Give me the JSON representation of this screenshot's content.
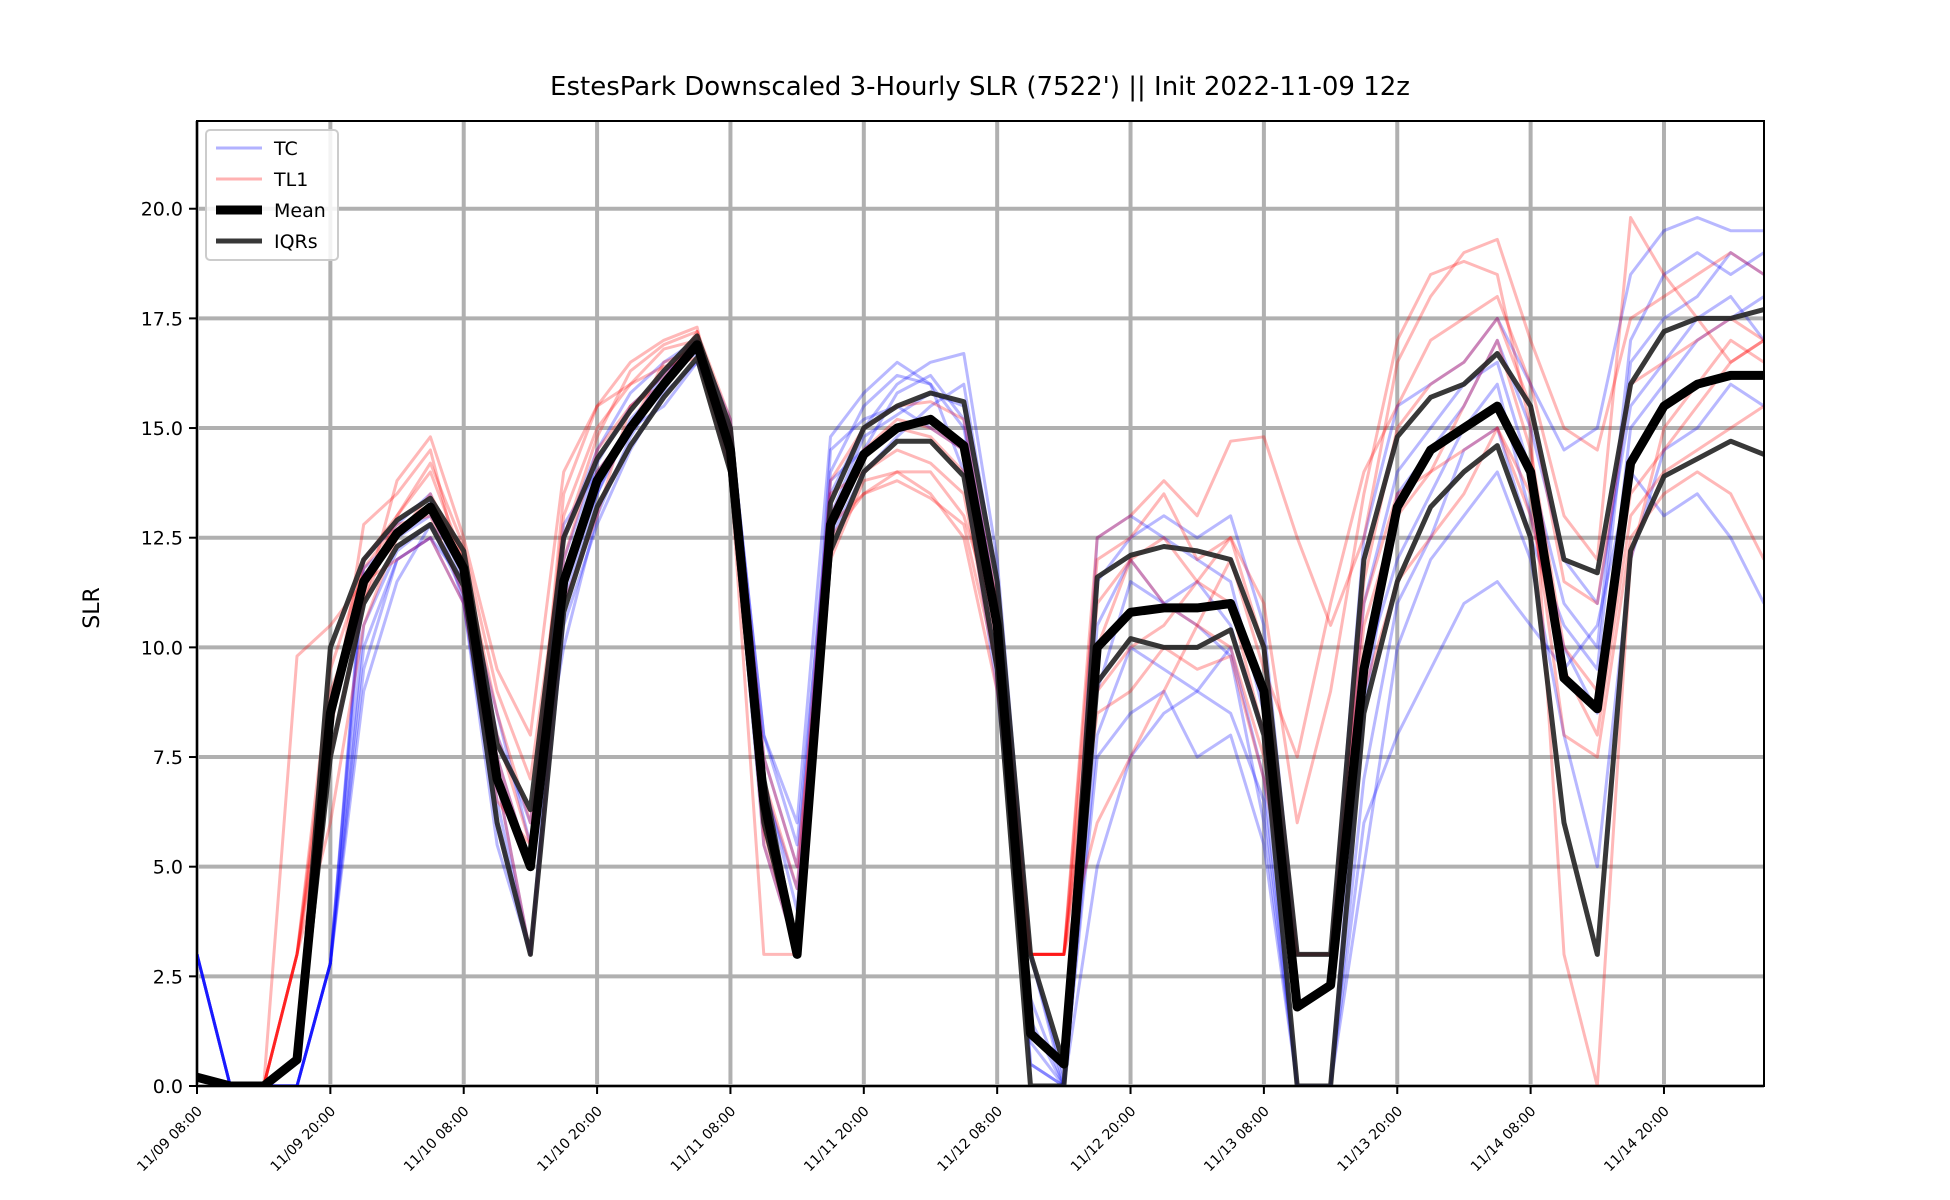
{
  "chart_data": {
    "type": "line",
    "title": "EstesPark Downscaled 3-Hourly SLR (7522') || Init 2022-11-09 12z",
    "ylabel": "SLR",
    "xlabel": "",
    "ylim": [
      0,
      22
    ],
    "yticks": [
      "0.0",
      "2.5",
      "5.0",
      "7.5",
      "10.0",
      "12.5",
      "15.0",
      "17.5",
      "20.0"
    ],
    "ytick_values": [
      0,
      2.5,
      5,
      7.5,
      10,
      12.5,
      15,
      17.5,
      20
    ],
    "xticks": [
      "11/09 08:00",
      "11/09 20:00",
      "11/10 08:00",
      "11/10 20:00",
      "11/11 08:00",
      "11/11 20:00",
      "11/12 08:00",
      "11/12 20:00",
      "11/13 08:00",
      "11/13 20:00",
      "11/14 08:00",
      "11/14 20:00"
    ],
    "x_step_hours": 3,
    "grid": true,
    "legend_position": "top-left",
    "colors": {
      "TC": "#0000ff",
      "TL1": "#ff0000",
      "Mean": "#000000",
      "IQRs": "#222222"
    },
    "legend": [
      {
        "label": "TC",
        "key": "TC"
      },
      {
        "label": "TL1",
        "key": "TL1"
      },
      {
        "label": "Mean",
        "key": "Mean"
      },
      {
        "label": "IQRs",
        "key": "IQRs"
      }
    ],
    "mean": [
      0.2,
      0,
      0,
      0.6,
      8.5,
      11.5,
      12.6,
      13.2,
      11.8,
      7.0,
      5.0,
      11.5,
      13.8,
      15.0,
      16.0,
      16.9,
      14.5,
      6.5,
      3.0,
      12.8,
      14.4,
      15.0,
      15.2,
      14.6,
      10.5,
      1.2,
      0.5,
      10.0,
      10.8,
      10.9,
      10.9,
      11.0,
      9.0,
      1.8,
      2.3,
      9.5,
      13.2,
      14.5,
      15.0,
      15.5,
      14.0,
      9.3,
      8.6,
      14.2,
      15.5,
      16.0,
      16.2,
      16.2
    ],
    "iqr_upper": [
      0.2,
      0,
      0,
      0.6,
      10.0,
      12.0,
      12.9,
      13.4,
      12.2,
      7.8,
      6.3,
      12.5,
      14.3,
      15.4,
      16.3,
      17.1,
      15.0,
      7.0,
      3.0,
      13.3,
      15.0,
      15.5,
      15.8,
      15.6,
      11.5,
      3.0,
      0.5,
      11.6,
      12.1,
      12.3,
      12.2,
      12.0,
      10.0,
      3.0,
      3.0,
      12.0,
      14.8,
      15.7,
      16.0,
      16.7,
      15.5,
      12.0,
      11.7,
      16.0,
      17.2,
      17.5,
      17.5,
      17.7
    ],
    "iqr_lower": [
      0.2,
      0,
      0,
      0.6,
      7.5,
      11.0,
      12.3,
      12.8,
      11.4,
      6.0,
      3.0,
      10.8,
      13.2,
      14.6,
      15.7,
      16.6,
      14.0,
      6.0,
      3.0,
      12.2,
      14.0,
      14.7,
      14.7,
      13.9,
      9.5,
      0,
      0,
      9.2,
      10.2,
      10.0,
      10.0,
      10.4,
      8.0,
      0,
      0,
      8.5,
      11.5,
      13.2,
      14.0,
      14.6,
      12.5,
      6.0,
      3.0,
      12.2,
      13.9,
      14.3,
      14.7,
      14.4
    ],
    "series": [
      {
        "name": "TC",
        "values": [
          3.0,
          0,
          0,
          0,
          2.8,
          11.8,
          12.5,
          13.3,
          11.5,
          8.5,
          5.5,
          10.0,
          13.0,
          14.8,
          16.0,
          16.8,
          15.0,
          8.0,
          5.5,
          13.5,
          15.0,
          16.0,
          16.5,
          16.7,
          12.0,
          3.0,
          0.2,
          12.5,
          13.0,
          12.5,
          12.0,
          11.5,
          8.5,
          3.0,
          3.0,
          12.5,
          15.5,
          16.0,
          16.5,
          17.5,
          16.0,
          14.5,
          15.0,
          18.5,
          19.5,
          19.8,
          19.5,
          19.5
        ]
      },
      {
        "name": "TC",
        "values": [
          3.0,
          0,
          0,
          0,
          2.8,
          10.5,
          12.2,
          12.8,
          11.2,
          6.5,
          3.0,
          11.0,
          13.5,
          15.0,
          16.3,
          16.7,
          14.5,
          6.8,
          4.5,
          13.0,
          14.8,
          15.3,
          15.8,
          15.5,
          10.8,
          1.0,
          0,
          9.0,
          11.5,
          11.0,
          10.5,
          9.8,
          6.0,
          0,
          0,
          5.0,
          10.0,
          12.0,
          13.0,
          14.0,
          12.0,
          8.0,
          5.0,
          12.0,
          14.5,
          15.0,
          16.0,
          15.5
        ]
      },
      {
        "name": "TC",
        "values": [
          3.0,
          0,
          0,
          0,
          2.8,
          9.5,
          12.0,
          12.5,
          11.0,
          5.5,
          3.0,
          12.0,
          14.2,
          15.5,
          16.2,
          17.0,
          15.2,
          7.5,
          5.0,
          14.0,
          15.5,
          16.2,
          16.0,
          15.0,
          11.0,
          0.5,
          0,
          5.0,
          7.5,
          8.5,
          9.0,
          10.0,
          7.0,
          0,
          0,
          6.0,
          8.0,
          9.5,
          11.0,
          11.5,
          10.5,
          9.5,
          10.5,
          14.0,
          13.0,
          13.5,
          12.5,
          11.0
        ]
      },
      {
        "name": "TC",
        "values": [
          3.0,
          0,
          0,
          0,
          2.8,
          11.5,
          12.5,
          13.0,
          11.8,
          8.0,
          6.0,
          12.5,
          14.5,
          15.8,
          16.5,
          17.0,
          14.0,
          5.5,
          3.0,
          14.5,
          15.2,
          15.5,
          15.0,
          14.5,
          9.5,
          2.0,
          0,
          11.5,
          12.5,
          13.0,
          12.5,
          13.0,
          10.5,
          3.0,
          3.0,
          11.0,
          14.0,
          15.0,
          16.0,
          16.5,
          14.0,
          11.0,
          10.0,
          17.0,
          18.5,
          19.0,
          18.5,
          19.0
        ]
      },
      {
        "name": "TC",
        "values": [
          3.0,
          0,
          0,
          0,
          2.8,
          9.0,
          11.5,
          12.8,
          12.0,
          7.0,
          3.0,
          10.5,
          12.8,
          14.5,
          15.8,
          16.5,
          14.8,
          6.5,
          3.0,
          12.5,
          14.0,
          14.8,
          15.5,
          16.0,
          11.5,
          3.0,
          0,
          10.5,
          12.0,
          11.0,
          11.5,
          10.5,
          8.0,
          0,
          0,
          9.5,
          12.0,
          13.5,
          15.0,
          16.0,
          13.0,
          10.0,
          8.5,
          15.0,
          16.0,
          17.0,
          17.5,
          18.0
        ]
      },
      {
        "name": "TC",
        "values": [
          3.0,
          0,
          0,
          0,
          2.8,
          12.0,
          12.8,
          13.5,
          11.0,
          6.0,
          3.0,
          11.5,
          13.5,
          15.2,
          16.0,
          16.9,
          14.2,
          7.0,
          4.0,
          13.8,
          14.5,
          15.8,
          16.2,
          15.2,
          10.0,
          0.5,
          0,
          8.0,
          10.0,
          9.5,
          9.0,
          8.5,
          6.5,
          0,
          0,
          7.0,
          11.0,
          12.5,
          14.5,
          15.0,
          12.5,
          10.5,
          9.5,
          16.5,
          17.5,
          18.0,
          19.0,
          18.5
        ]
      },
      {
        "name": "TC",
        "values": [
          3.0,
          0,
          0,
          0,
          2.8,
          10.0,
          12.0,
          12.5,
          11.5,
          7.5,
          5.0,
          12.8,
          14.0,
          15.0,
          15.5,
          16.5,
          15.0,
          8.0,
          6.0,
          14.8,
          15.8,
          16.5,
          16.0,
          14.0,
          9.0,
          1.5,
          0,
          7.5,
          8.5,
          9.0,
          7.5,
          8.0,
          5.5,
          0,
          0,
          8.5,
          13.5,
          14.5,
          15.5,
          17.0,
          15.0,
          12.0,
          11.0,
          15.5,
          16.5,
          17.5,
          18.0,
          17.0
        ]
      },
      {
        "name": "TL1",
        "values": [
          0.2,
          0,
          0,
          9.8,
          10.5,
          11.5,
          12.0,
          12.5,
          11.0,
          6.5,
          5.5,
          12.0,
          14.5,
          15.5,
          16.0,
          17.2,
          14.5,
          5.5,
          3.0,
          12.0,
          13.8,
          14.0,
          13.5,
          12.5,
          9.0,
          3.0,
          3.0,
          12.5,
          13.0,
          13.8,
          13.0,
          14.7,
          14.8,
          12.5,
          10.5,
          12.5,
          16.5,
          18.0,
          19.0,
          19.3,
          17.0,
          15.0,
          14.5,
          17.5,
          18.0,
          18.5,
          19.0,
          18.5
        ]
      },
      {
        "name": "TL1",
        "values": [
          0.2,
          0,
          0,
          3.0,
          9.0,
          11.0,
          13.8,
          14.8,
          12.5,
          9.5,
          8.0,
          14.0,
          15.5,
          16.5,
          17.0,
          17.3,
          14.0,
          3.0,
          3.0,
          12.8,
          14.5,
          15.0,
          14.8,
          14.0,
          10.0,
          3.0,
          3.0,
          12.0,
          12.5,
          13.5,
          12.0,
          12.5,
          11.0,
          6.0,
          9.0,
          13.5,
          17.0,
          18.5,
          18.8,
          18.5,
          15.0,
          3.0,
          0,
          12.0,
          15.0,
          16.0,
          17.0,
          16.5
        ]
      },
      {
        "name": "TL1",
        "values": [
          0.2,
          0,
          0,
          3.0,
          7.5,
          11.0,
          13.0,
          14.0,
          12.0,
          8.5,
          6.0,
          13.0,
          15.0,
          16.0,
          16.8,
          17.0,
          14.8,
          6.0,
          3.0,
          13.5,
          14.0,
          14.5,
          14.2,
          13.5,
          9.5,
          3.0,
          3.0,
          6.0,
          7.5,
          9.0,
          10.5,
          12.0,
          9.5,
          7.5,
          11.0,
          14.0,
          15.5,
          17.0,
          17.5,
          18.0,
          16.0,
          13.0,
          12.0,
          19.8,
          18.5,
          17.5,
          16.5,
          17.0
        ]
      },
      {
        "name": "TL1",
        "values": [
          0.2,
          0,
          0,
          3.0,
          8.0,
          12.8,
          13.5,
          14.5,
          11.5,
          7.5,
          5.0,
          11.5,
          14.0,
          15.0,
          16.5,
          16.8,
          15.0,
          7.5,
          5.0,
          12.5,
          13.5,
          14.0,
          14.0,
          13.0,
          10.5,
          3.0,
          3.0,
          10.0,
          12.0,
          12.5,
          11.5,
          11.0,
          8.0,
          3.0,
          3.0,
          10.5,
          13.0,
          14.0,
          15.5,
          17.0,
          14.5,
          10.0,
          9.0,
          13.5,
          14.5,
          15.5,
          16.5,
          17.0
        ]
      },
      {
        "name": "TL1",
        "values": [
          0.2,
          0,
          0,
          3.0,
          6.0,
          10.5,
          12.5,
          13.5,
          12.0,
          7.0,
          3.0,
          11.0,
          13.0,
          15.5,
          16.2,
          17.1,
          14.2,
          6.5,
          3.0,
          13.0,
          14.5,
          15.2,
          15.0,
          14.5,
          11.0,
          3.0,
          3.0,
          11.0,
          12.0,
          11.0,
          10.5,
          10.0,
          7.5,
          3.0,
          3.0,
          9.0,
          11.5,
          12.5,
          13.5,
          15.0,
          13.0,
          9.5,
          8.0,
          13.0,
          14.0,
          14.5,
          15.0,
          15.5
        ]
      },
      {
        "name": "TL1",
        "values": [
          0.2,
          0,
          0,
          3.0,
          8.5,
          12.0,
          13.0,
          14.2,
          12.3,
          9.0,
          7.0,
          12.5,
          14.8,
          16.3,
          16.9,
          17.2,
          15.2,
          7.0,
          4.5,
          13.8,
          15.0,
          15.5,
          15.6,
          15.2,
          11.0,
          3.0,
          3.0,
          9.0,
          10.0,
          10.5,
          11.5,
          12.5,
          10.0,
          3.0,
          3.0,
          11.5,
          15.0,
          16.0,
          16.5,
          17.5,
          15.5,
          11.5,
          11.0,
          16.0,
          16.5,
          17.0,
          17.5,
          17.0
        ]
      },
      {
        "name": "TL1",
        "values": [
          0.2,
          0,
          0,
          3.0,
          9.5,
          11.8,
          12.8,
          13.0,
          11.2,
          8.0,
          5.5,
          13.5,
          15.5,
          16.0,
          16.4,
          16.6,
          14.0,
          5.8,
          3.0,
          12.8,
          13.5,
          13.8,
          13.4,
          12.8,
          9.5,
          3.0,
          3.0,
          8.5,
          9.0,
          10.0,
          9.5,
          9.8,
          7.0,
          3.0,
          3.0,
          11.0,
          13.5,
          14.0,
          14.5,
          15.0,
          13.5,
          8.0,
          7.5,
          12.5,
          13.5,
          14.0,
          13.5,
          12.0
        ]
      }
    ]
  }
}
